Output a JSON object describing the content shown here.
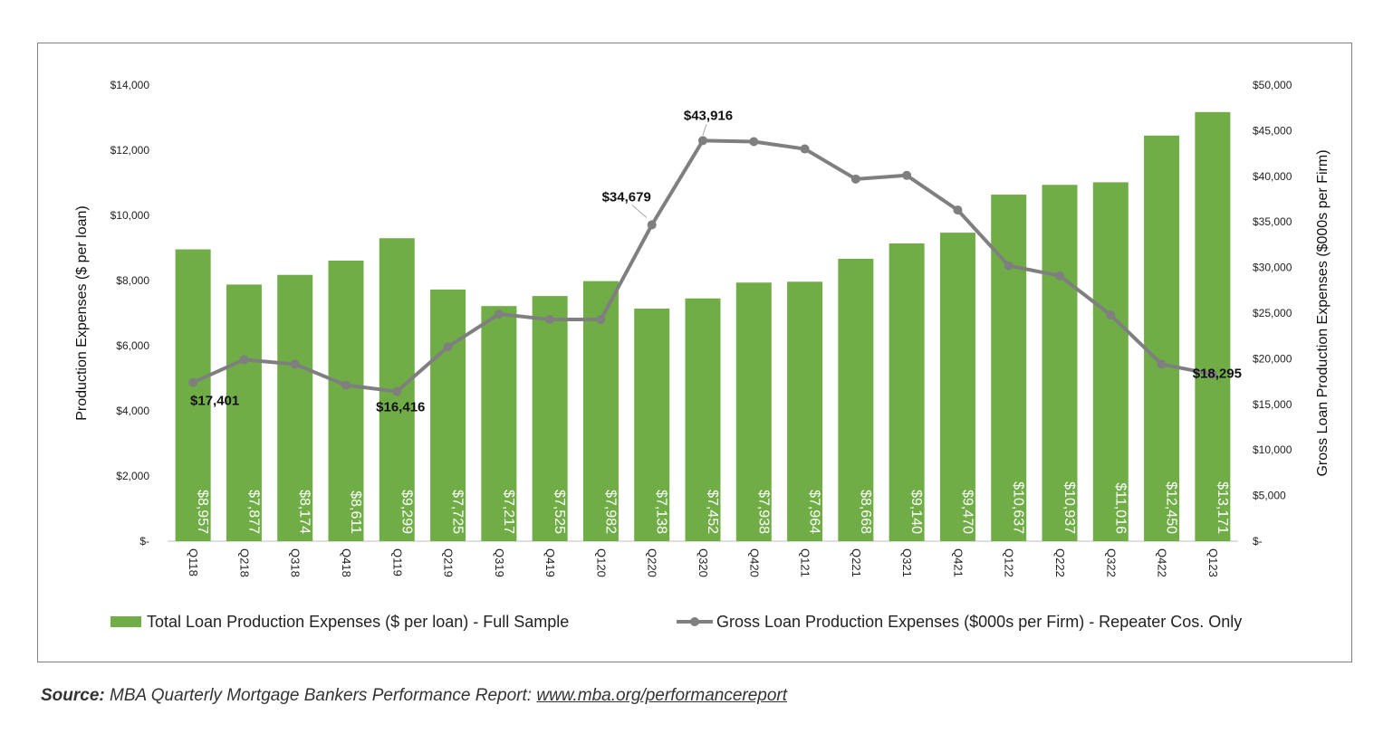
{
  "chart_data": {
    "type": "bar",
    "categories": [
      "Q118",
      "Q218",
      "Q318",
      "Q418",
      "Q119",
      "Q219",
      "Q319",
      "Q419",
      "Q120",
      "Q220",
      "Q320",
      "Q420",
      "Q121",
      "Q221",
      "Q321",
      "Q421",
      "Q122",
      "Q222",
      "Q322",
      "Q422",
      "Q123"
    ],
    "series": [
      {
        "name": "Total Loan Production Expenses ($ per loan) - Full Sample",
        "type": "bar",
        "axis": "left",
        "color": "#70ad47",
        "values": [
          8957,
          7877,
          8174,
          8611,
          9299,
          7725,
          7217,
          7525,
          7982,
          7138,
          7452,
          7938,
          7964,
          8668,
          9140,
          9470,
          10637,
          10937,
          11016,
          12450,
          13171
        ],
        "labels": [
          "$8,957",
          "$7,877",
          "$8,174",
          "$8,611",
          "$9,299",
          "$7,725",
          "$7,217",
          "$7,525",
          "$7,982",
          "$7,138",
          "$7,452",
          "$7,938",
          "$7,964",
          "$8,668",
          "$9,140",
          "$9,470",
          "$10,637",
          "$10,937",
          "$11,016",
          "$12,450",
          "$13,171"
        ]
      },
      {
        "name": "Gross Loan Production Expenses ($000s per Firm) - Repeater Cos. Only",
        "type": "line",
        "axis": "right",
        "color": "#7f7f7f",
        "values": [
          17401,
          19900,
          19400,
          17100,
          16416,
          21300,
          24900,
          24300,
          24300,
          34679,
          43916,
          43800,
          43000,
          39700,
          40100,
          36300,
          30200,
          29100,
          24800,
          19400,
          18295
        ],
        "point_labels": [
          {
            "index": 0,
            "text": "$17,401"
          },
          {
            "index": 4,
            "text": "$16,416"
          },
          {
            "index": 9,
            "text": "$34,679"
          },
          {
            "index": 10,
            "text": "$43,916"
          },
          {
            "index": 20,
            "text": "$18,295"
          }
        ]
      }
    ],
    "ylabel": "Production Expenses ($ per loan)",
    "y2label": "Gross Loan Production Expenses ($000s per Firm)",
    "ylim": [
      0,
      14000
    ],
    "y2lim": [
      0,
      50000
    ],
    "yticks": [
      "$-",
      "$2,000",
      "$4,000",
      "$6,000",
      "$8,000",
      "$10,000",
      "$12,000",
      "$14,000"
    ],
    "y2ticks": [
      "$-",
      "$5,000",
      "$10,000",
      "$15,000",
      "$20,000",
      "$25,000",
      "$30,000",
      "$35,000",
      "$40,000",
      "$45,000",
      "$50,000"
    ],
    "grid": false,
    "legend": "bottom"
  },
  "source": {
    "label": "Source:",
    "text": " MBA Quarterly Mortgage Bankers Performance Report: ",
    "link": "www.mba.org/performancereport"
  }
}
